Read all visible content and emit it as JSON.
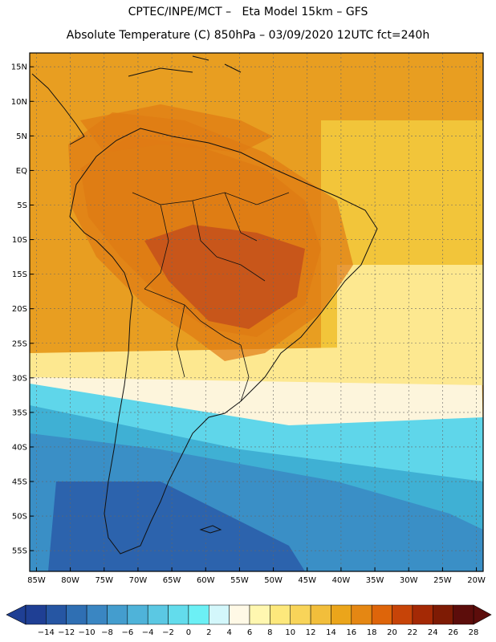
{
  "header": {
    "line1": "CPTEC/INPE/MCT –   Eta Model 15km – GFS",
    "line2": "Absolute Temperature (C) 850hPa – 03/09/2020 12UTC fct=240h"
  },
  "map": {
    "variable": "Absolute Temperature",
    "units": "C",
    "level": "850hPa",
    "lat_ticks": [
      "15N",
      "10N",
      "5N",
      "EQ",
      "5S",
      "10S",
      "15S",
      "20S",
      "25S",
      "30S",
      "35S",
      "40S",
      "45S",
      "50S",
      "55S"
    ],
    "lon_ticks": [
      "85W",
      "80W",
      "75W",
      "70W",
      "65W",
      "60W",
      "55W",
      "50W",
      "45W",
      "40W",
      "35W",
      "30W",
      "25W",
      "20W"
    ]
  },
  "colorbar": {
    "labels": [
      "-14",
      "-12",
      "-10",
      "-8",
      "-6",
      "-4",
      "-2",
      "0",
      "2",
      "4",
      "6",
      "8",
      "10",
      "12",
      "14",
      "16",
      "18",
      "20",
      "22",
      "24",
      "26",
      "28"
    ],
    "colors": [
      "#1f3f94",
      "#2656a3",
      "#2f6fb3",
      "#3a86c2",
      "#449dce",
      "#4fb3d9",
      "#5bc8e3",
      "#63dcec",
      "#6cf0f5",
      "#d3f7fb",
      "#fff9e6",
      "#fff7b0",
      "#fde87c",
      "#f8d459",
      "#f2be3b",
      "#eba51b",
      "#e58713",
      "#de650a",
      "#c74408",
      "#a42905",
      "#7e1b04",
      "#5c0d0b"
    ]
  },
  "palette": {
    "orange_core": "#c8561a",
    "orange_mid": "#df7a14",
    "orange_light": "#e89e21",
    "yellow": "#f2c53a",
    "pale_yellow": "#fde890",
    "cream": "#fdf5dc",
    "cyan": "#5fd6ea",
    "blue_light": "#3fb0d4",
    "blue_mid": "#3a8fc6",
    "blue_deep": "#2c63ad",
    "grid": "#666666",
    "coast": "#111111"
  }
}
